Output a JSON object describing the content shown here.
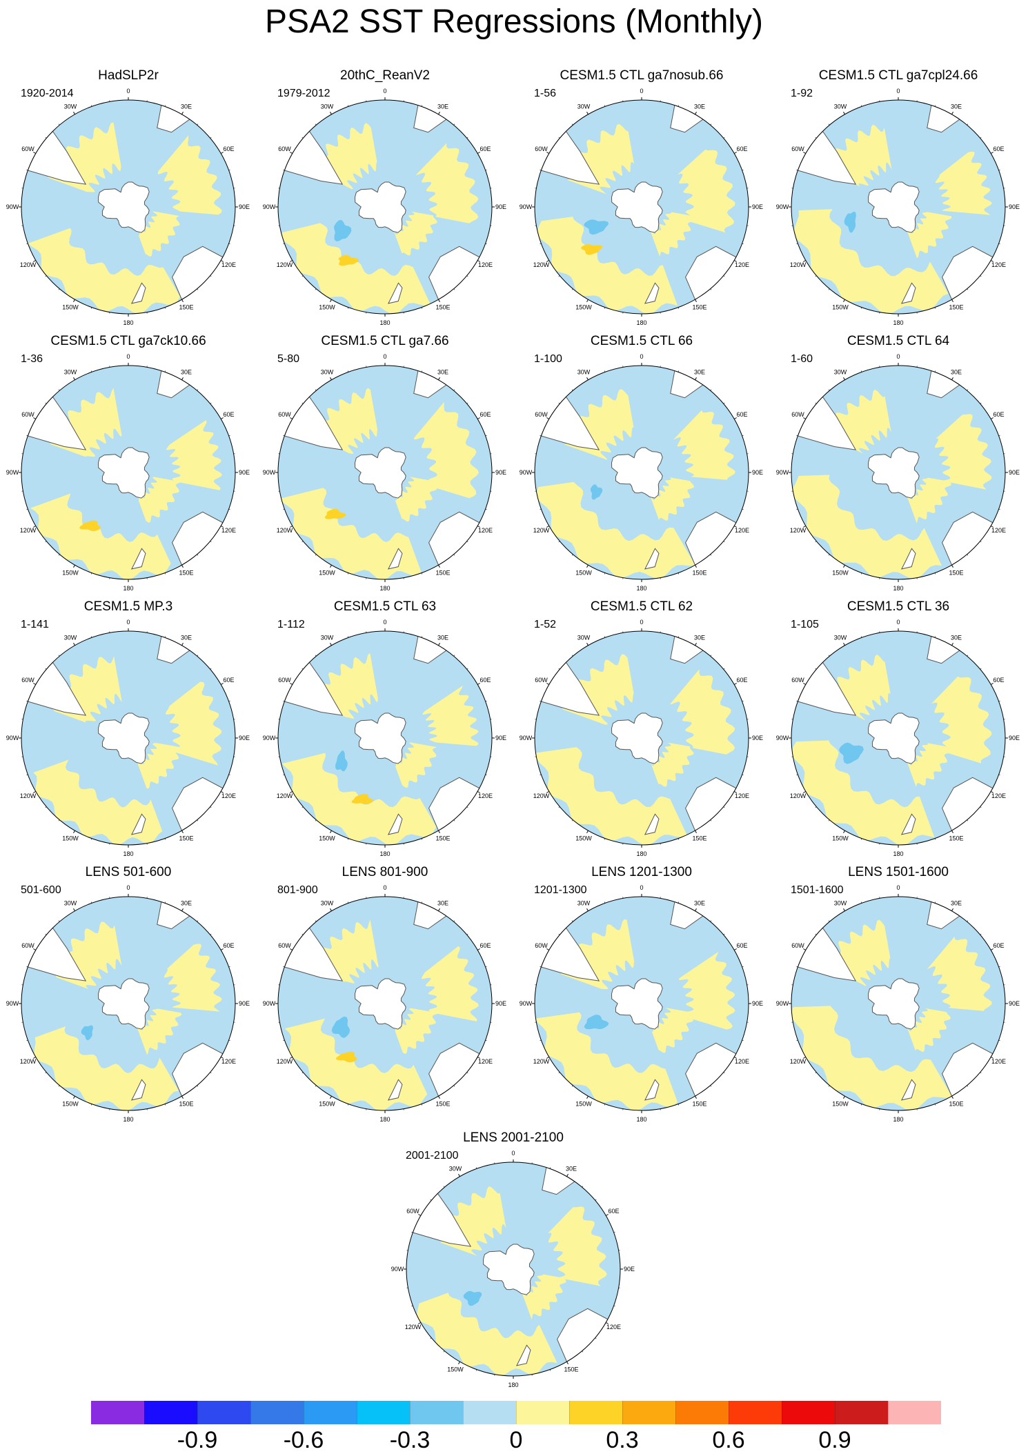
{
  "title": "PSA2 SST Regressions (Monthly)",
  "colors": {
    "land": "#ffffff",
    "coast": "#555555",
    "positive_weak": "#fdf59a",
    "positive_mid": "#fdd328",
    "negative_weak": "#b5def2",
    "negative_mid": "#6fc6ef"
  },
  "lon_labels": [
    "0",
    "30E",
    "60E",
    "90E",
    "120E",
    "150E",
    "180",
    "150W",
    "120W",
    "90W",
    "60W",
    "30W"
  ],
  "panels": [
    {
      "title": "HadSLP2r",
      "range": "1920-2014"
    },
    {
      "title": "20thC_ReanV2",
      "range": "1979-2012"
    },
    {
      "title": "CESM1.5 CTL ga7nosub.66",
      "range": "1-56"
    },
    {
      "title": "CESM1.5 CTL ga7cpl24.66",
      "range": "1-92"
    },
    {
      "title": "CESM1.5 CTL ga7ck10.66",
      "range": "1-36"
    },
    {
      "title": "CESM1.5 CTL ga7.66",
      "range": "5-80"
    },
    {
      "title": "CESM1.5 CTL 66",
      "range": "1-100"
    },
    {
      "title": "CESM1.5 CTL 64",
      "range": "1-60"
    },
    {
      "title": "CESM1.5 MP.3",
      "range": "1-141"
    },
    {
      "title": "CESM1.5 CTL 63",
      "range": "1-112"
    },
    {
      "title": "CESM1.5 CTL 62",
      "range": "1-52"
    },
    {
      "title": "CESM1.5 CTL 36",
      "range": "1-105"
    },
    {
      "title": "LENS 501-600",
      "range": "501-600"
    },
    {
      "title": "LENS 801-900",
      "range": "801-900"
    },
    {
      "title": "LENS 1201-1300",
      "range": "1201-1300"
    },
    {
      "title": "LENS 1501-1600",
      "range": "1501-1600"
    },
    {
      "title": "LENS 2001-2100",
      "range": "2001-2100"
    }
  ],
  "colorbar": {
    "colors": [
      "#8a2be2",
      "#1a0dff",
      "#2e49f0",
      "#3579e8",
      "#2b9af5",
      "#06c1f7",
      "#6fc6ef",
      "#b5def2",
      "#fdf59a",
      "#fdd328",
      "#fca80f",
      "#fc7a06",
      "#fd3b09",
      "#ec0a0a",
      "#cc1c1c",
      "#fdb4b4"
    ],
    "labels": [
      "-0.9",
      "-0.6",
      "-0.3",
      "0",
      "0.3",
      "0.6",
      "0.9"
    ],
    "label_boundaries": [
      2,
      5,
      8,
      11,
      14,
      17,
      20
    ]
  }
}
